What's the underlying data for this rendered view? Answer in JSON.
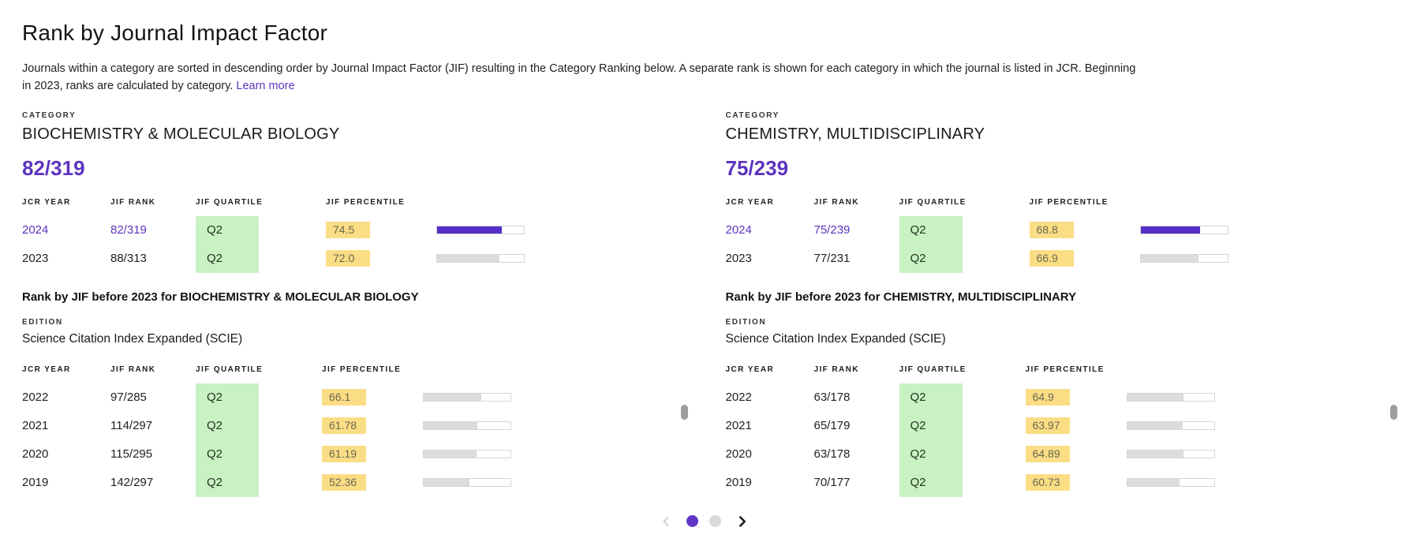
{
  "page": {
    "title": "Rank by Journal Impact Factor",
    "description": "Journals within a category are sorted in descending order by Journal Impact Factor (JIF) resulting in the Category Ranking below. A separate rank is shown for each category in which the journal is listed in JCR. Beginning in 2023, ranks are calculated by category.",
    "learn_more": "Learn more"
  },
  "labels": {
    "category": "CATEGORY",
    "edition": "EDITION",
    "col_year": "JCR YEAR",
    "col_rank": "JIF RANK",
    "col_quartile": "JIF QUARTILE",
    "col_percentile": "JIF PERCENTILE"
  },
  "colors": {
    "accent_purple": "#5e33bf",
    "bar_fill_purple": "#5430c8",
    "quartile_green": "#c9f2c3",
    "percentile_yellow": "#fbdd85",
    "bar_fill_gray": "#dcdcdc",
    "inactive_dot_gray": "#d9d9d9"
  },
  "panels": [
    {
      "category": "BIOCHEMISTRY & MOLECULAR BIOLOGY",
      "rank": "82/319",
      "recent_rows": [
        {
          "year": "2024",
          "rank": "82/319",
          "quartile": "Q2",
          "percentile": "74.5"
        },
        {
          "year": "2023",
          "rank": "88/313",
          "quartile": "Q2",
          "percentile": "72.0"
        }
      ],
      "before_title": "Rank by JIF before 2023 for BIOCHEMISTRY & MOLECULAR BIOLOGY",
      "edition_name": "Science Citation Index Expanded (SCIE)",
      "historic_rows": [
        {
          "year": "2022",
          "rank": "97/285",
          "quartile": "Q2",
          "percentile": "66.1"
        },
        {
          "year": "2021",
          "rank": "114/297",
          "quartile": "Q2",
          "percentile": "61.78"
        },
        {
          "year": "2020",
          "rank": "115/295",
          "quartile": "Q2",
          "percentile": "61.19"
        },
        {
          "year": "2019",
          "rank": "142/297",
          "quartile": "Q2",
          "percentile": "52.36"
        }
      ]
    },
    {
      "category": "CHEMISTRY, MULTIDISCIPLINARY",
      "rank": "75/239",
      "recent_rows": [
        {
          "year": "2024",
          "rank": "75/239",
          "quartile": "Q2",
          "percentile": "68.8"
        },
        {
          "year": "2023",
          "rank": "77/231",
          "quartile": "Q2",
          "percentile": "66.9"
        }
      ],
      "before_title": "Rank by JIF before 2023 for CHEMISTRY, MULTIDISCIPLINARY",
      "edition_name": "Science Citation Index Expanded (SCIE)",
      "historic_rows": [
        {
          "year": "2022",
          "rank": "63/178",
          "quartile": "Q2",
          "percentile": "64.9"
        },
        {
          "year": "2021",
          "rank": "65/179",
          "quartile": "Q2",
          "percentile": "63.97"
        },
        {
          "year": "2020",
          "rank": "63/178",
          "quartile": "Q2",
          "percentile": "64.89"
        },
        {
          "year": "2019",
          "rank": "70/177",
          "quartile": "Q2",
          "percentile": "60.73"
        }
      ]
    }
  ],
  "pagination": {
    "total_pages": 2,
    "active_page": 1
  }
}
